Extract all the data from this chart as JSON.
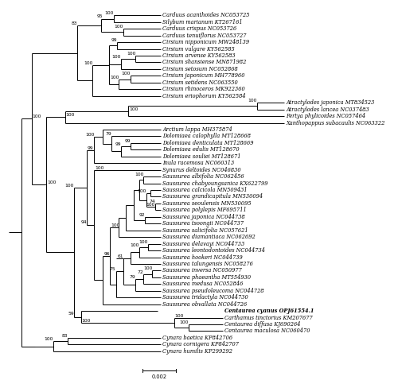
{
  "scale_bar_label": "0.002",
  "bold_taxon": "Centaurea cyanus OPJ61554.1",
  "background_color": "#ffffff",
  "line_color": "#000000",
  "text_color": "#000000",
  "font_size": 4.8,
  "bootstrap_font_size": 4.3,
  "order": [
    "Carduus acanthoides NC053725",
    "Silybum marianum KT267161",
    "Carduus crispus NC053726",
    "Carduus tenuiflorus NC053727",
    "Cirsium nipponicum MW248139",
    "Cirsium vulgare KY562585",
    "Cirsium arvense KY562583",
    "Cirsium shansiense MN871982",
    "Cirsium setosum NC052868",
    "Cirsium japonicum MH778960",
    "Cirsium setidens NC063550",
    "Cirsium rhinoceros MK922360",
    "Cirsium eriophorum KY562584",
    "Atractylodes japonica MT834523",
    "Atractylodes lancea NC037483",
    "Pertya phylicoides NC057464",
    "Xanthopappus subacaulis NC063322",
    "Arctium lappa MH375874",
    "Dolomiaea calophylla MT128668",
    "Dolomiaea denticulata MT128669",
    "Dolomiaea edulis MT128670",
    "Dolomiaea souliei MT128671",
    "Inula racemosa NC060313",
    "Synurus deltoides NC046830",
    "Saussurea albifolia NC062456",
    "Saussurea chabyoungsanica KX622799",
    "Saussurea calcicola MN509431",
    "Saussurea grandicapitula MN530094",
    "Saussurea seoulensis MN530095",
    "Saussurea polylepis MF695711",
    "Saussurea japonica NC044738",
    "Saussurea tsoongii NC044737",
    "Saussurea salicifolia NC057621",
    "Saussurea diamantiaca NC062692",
    "Saussurea delavayi NC044733",
    "Saussurea leontodontoides NC044734",
    "Saussurea hookeri NC044739",
    "Saussurea talungensis NC058276",
    "Saussurea inversa NC050977",
    "Saussurea phaeantha MT554930",
    "Saussurea medusa NC052846",
    "Saussurea pseudoleucoma NC044728",
    "Saussurea tridactyla NC044730",
    "Saussurea obvallata NC044726",
    "Centaurea cyanus OPJ61554.1",
    "Carthamus tinctorius KM207677",
    "Centaurea diffusa KJ690264",
    "Centaurea maculosa NC060470",
    "Cynara baetica KP842706",
    "Cynara cornigera KP842707",
    "Cynara humilis KP299292"
  ]
}
